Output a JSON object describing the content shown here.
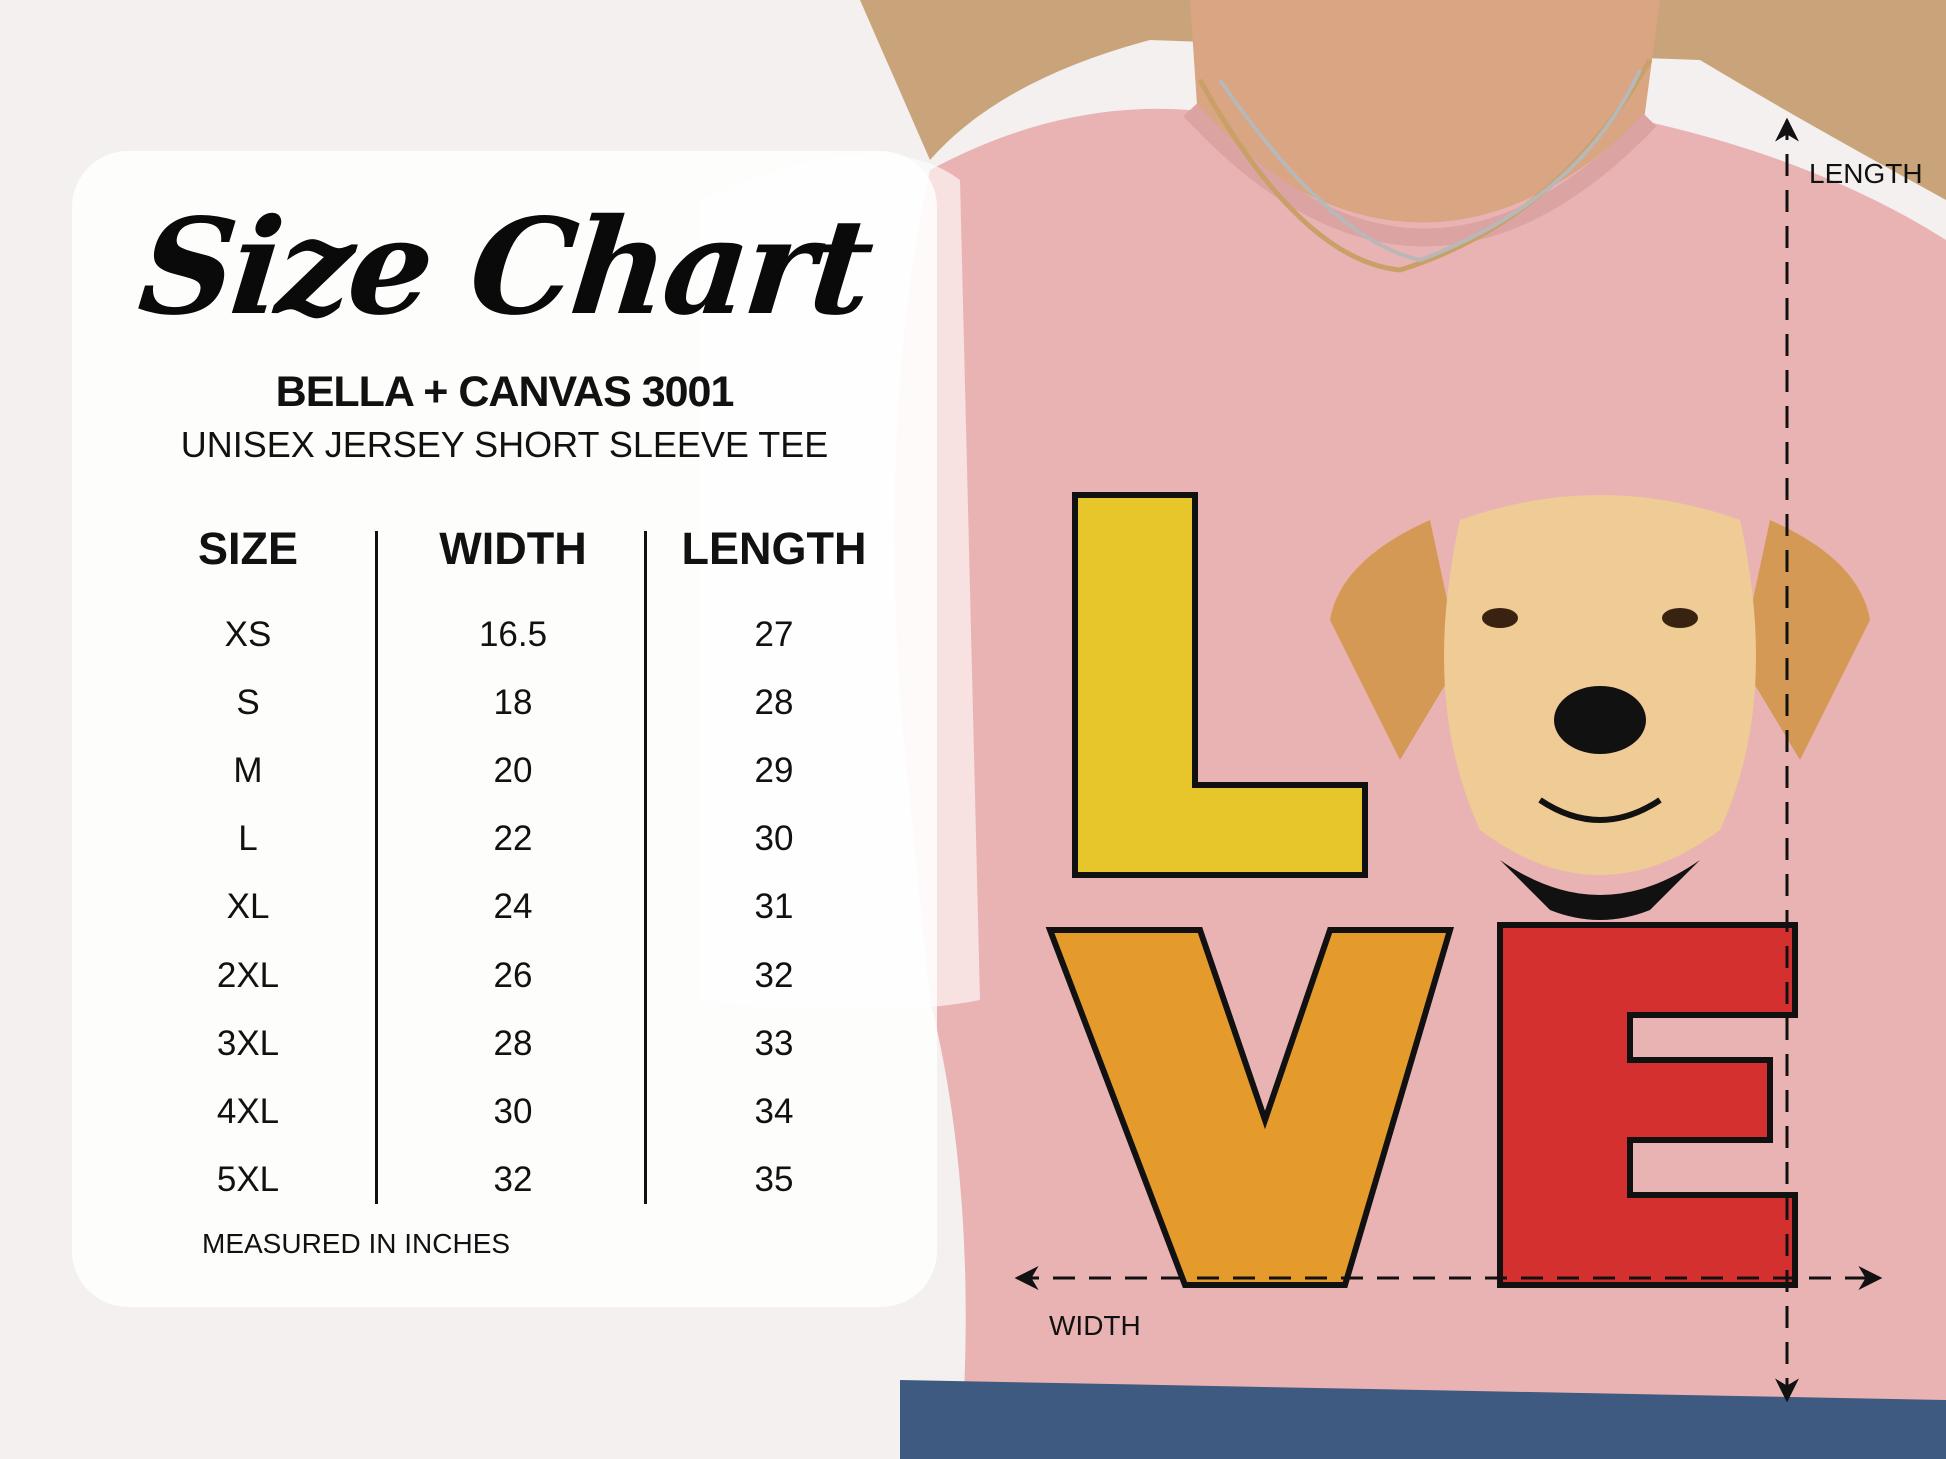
{
  "chart": {
    "title": "Size Chart",
    "brand": "BELLA + CANVAS 3001",
    "product": "UNISEX JERSEY SHORT SLEEVE TEE",
    "columns": [
      "SIZE",
      "WIDTH",
      "LENGTH"
    ],
    "rows": [
      [
        "XS",
        "16.5",
        "27"
      ],
      [
        "S",
        "18",
        "28"
      ],
      [
        "M",
        "20",
        "29"
      ],
      [
        "L",
        "22",
        "30"
      ],
      [
        "XL",
        "24",
        "31"
      ],
      [
        "2XL",
        "26",
        "32"
      ],
      [
        "3XL",
        "28",
        "33"
      ],
      [
        "4XL",
        "30",
        "34"
      ],
      [
        "5XL",
        "32",
        "35"
      ]
    ],
    "note": "MEASURED IN INCHES"
  },
  "diagram": {
    "length_label": "LENGTH",
    "width_label": "WIDTH"
  },
  "design": {
    "text": "LOVE",
    "colors": {
      "L": "#e6c62a",
      "V": "#e59a2c",
      "E": "#d3302f",
      "shirt": "#eab3b3"
    }
  }
}
